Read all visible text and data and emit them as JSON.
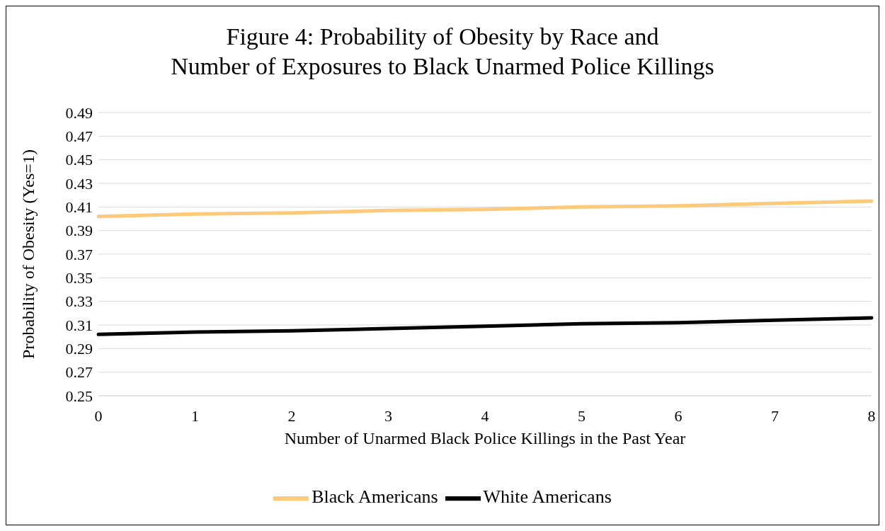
{
  "chart_data": {
    "type": "line",
    "title": "Figure 4: Probability of Obesity by Race and\nNumber of Exposures to Black Unarmed Police Killings",
    "xlabel": "Number of Unarmed Black Police Killings in the Past Year",
    "ylabel": "Probability of Obesity (Yes=1)",
    "categories": [
      "0",
      "1",
      "2",
      "3",
      "4",
      "5",
      "6",
      "7",
      "8"
    ],
    "series": [
      {
        "name": "Black Americans",
        "color": "#fdc97a",
        "values": [
          0.402,
          0.404,
          0.405,
          0.407,
          0.408,
          0.41,
          0.411,
          0.413,
          0.415
        ]
      },
      {
        "name": "White Americans",
        "color": "#000000",
        "values": [
          0.302,
          0.304,
          0.305,
          0.307,
          0.309,
          0.311,
          0.312,
          0.314,
          0.316
        ]
      }
    ],
    "ylim": [
      0.25,
      0.49
    ],
    "yticks": [
      0.25,
      0.27,
      0.29,
      0.31,
      0.33,
      0.35,
      0.37,
      0.39,
      0.41,
      0.43,
      0.45,
      0.47,
      0.49
    ],
    "grid": "y",
    "legend": "bottom",
    "marker": "none",
    "line_style": "solid"
  }
}
